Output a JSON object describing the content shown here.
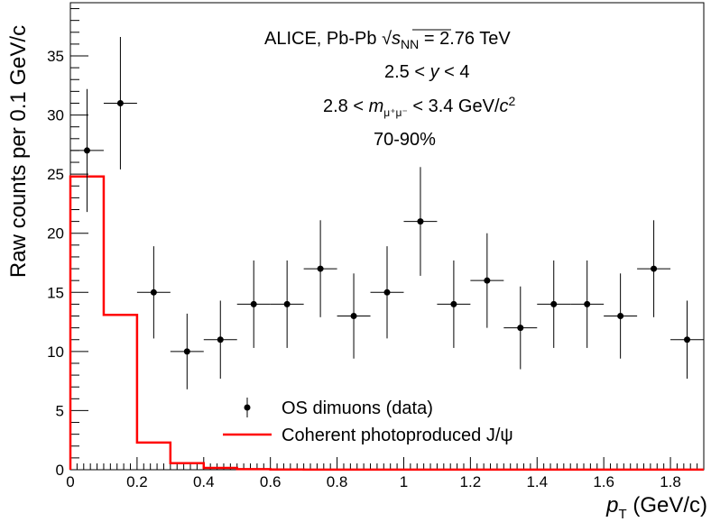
{
  "chart_data": {
    "type": "scatter",
    "title": "",
    "xlabel_var": "p",
    "xlabel_sub": "T",
    "xlabel_unit": " (GeV/c)",
    "ylabel": "Raw counts per 0.1 GeV/c",
    "xlim": [
      0,
      1.9
    ],
    "ylim": [
      0,
      39.5
    ],
    "x_ticks": [
      0,
      0.2,
      0.4,
      0.6,
      0.8,
      1.0,
      1.2,
      1.4,
      1.6,
      1.8
    ],
    "x_tick_labels": [
      "0",
      "0.2",
      "0.4",
      "0.6",
      "0.8",
      "1",
      "1.2",
      "1.4",
      "1.6",
      "1.8"
    ],
    "y_ticks": [
      0,
      5,
      10,
      15,
      20,
      25,
      30,
      35
    ],
    "y_tick_labels": [
      "0",
      "5",
      "10",
      "15",
      "20",
      "25",
      "30",
      "35"
    ],
    "grid": false,
    "series": [
      {
        "name": "OS dimuons (data)",
        "kind": "points-with-errors",
        "color": "#000000",
        "x": [
          0.05,
          0.15,
          0.25,
          0.35,
          0.45,
          0.55,
          0.65,
          0.75,
          0.85,
          0.95,
          1.05,
          1.15,
          1.25,
          1.35,
          1.45,
          1.55,
          1.65,
          1.75,
          1.85
        ],
        "x_err": 0.05,
        "values": [
          27,
          31,
          15,
          10,
          11,
          14,
          14,
          17,
          13,
          15,
          21,
          14,
          16,
          12,
          14,
          14,
          13,
          17,
          11
        ],
        "y_err": [
          5.2,
          5.6,
          3.9,
          3.2,
          3.3,
          3.7,
          3.7,
          4.1,
          3.6,
          3.9,
          4.6,
          3.7,
          4.0,
          3.5,
          3.7,
          3.7,
          3.6,
          4.1,
          3.3
        ]
      },
      {
        "name": "Coherent photoproduced J/ψ",
        "kind": "histogram",
        "color": "#ff0000",
        "bin_edges": [
          0,
          0.1,
          0.2,
          0.3,
          0.4,
          0.5,
          0.6,
          0.7,
          0.8,
          0.9,
          1.0,
          1.1,
          1.2,
          1.3,
          1.4,
          1.5,
          1.6,
          1.7,
          1.8,
          1.9
        ],
        "values": [
          24.8,
          13.1,
          2.3,
          0.55,
          0.15,
          0.05,
          0.02,
          0.01,
          0.01,
          0.01,
          0.01,
          0.01,
          0.01,
          0.01,
          0.01,
          0.01,
          0.01,
          0.01,
          0.01
        ]
      }
    ],
    "annotations": {
      "collab": "ALICE, Pb-Pb ",
      "sqrt": "√",
      "s_var": "s",
      "s_sub": "NN",
      "energy": " = 2.76 TeV",
      "rapidity_a": "2.5 < ",
      "rapidity_var": "y",
      "rapidity_b": " < 4",
      "mass_a": "2.8 < ",
      "mass_var": "m",
      "mass_sub": "μ⁺μ⁻",
      "mass_b": " < 3.4 GeV/",
      "mass_c": "c",
      "mass_sup": "2",
      "centrality": "70-90%"
    },
    "legend_position": "bottom-center"
  }
}
